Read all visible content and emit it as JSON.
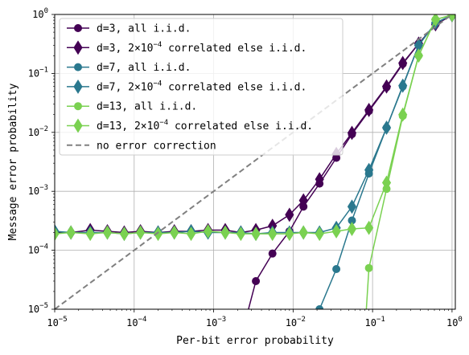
{
  "chart_data": {
    "type": "line",
    "xlabel": "Per-bit error probability",
    "ylabel": "Message error probability",
    "xscale": "log",
    "yscale": "log",
    "xlim": [
      1e-05,
      1.1
    ],
    "ylim": [
      1e-05,
      1
    ],
    "grid": true,
    "legend_position": "top-left",
    "x_ticks": [
      {
        "value": 1e-05,
        "label": "10^-5"
      },
      {
        "value": 0.0001,
        "label": "10^-4"
      },
      {
        "value": 0.001,
        "label": "10^-3"
      },
      {
        "value": 0.01,
        "label": "10^-2"
      },
      {
        "value": 0.1,
        "label": "10^-1"
      },
      {
        "value": 1,
        "label": "10^0"
      }
    ],
    "y_ticks": [
      {
        "value": 1e-05,
        "label": "10^-5"
      },
      {
        "value": 0.0001,
        "label": "10^-4"
      },
      {
        "value": 0.001,
        "label": "10^-3"
      },
      {
        "value": 0.01,
        "label": "10^-2"
      },
      {
        "value": 0.1,
        "label": "10^-1"
      },
      {
        "value": 1,
        "label": "10^0"
      }
    ],
    "series": [
      {
        "name": "d=3, all i.i.d.",
        "color": "#440154",
        "marker": "circle",
        "dashed": false,
        "points": [
          [
            0.00175,
            1e-06
          ],
          [
            0.0034,
            3e-05
          ],
          [
            0.0055,
            8.8e-05
          ],
          [
            0.009,
            0.00021
          ],
          [
            0.0135,
            0.00055
          ],
          [
            0.0215,
            0.00135
          ],
          [
            0.035,
            0.0037
          ],
          [
            0.055,
            0.0093
          ],
          [
            0.09,
            0.023
          ],
          [
            0.15,
            0.058
          ],
          [
            0.24,
            0.145
          ],
          [
            0.38,
            0.32
          ],
          [
            0.62,
            0.68
          ],
          [
            1.0,
            0.97
          ]
        ]
      },
      {
        "name": "d=3, 2×10^-4 correlated else i.i.d.",
        "color": "#440154",
        "marker": "diamond",
        "dashed": false,
        "points": [
          [
            1e-05,
            0.0002
          ],
          [
            1.6e-05,
            0.0002
          ],
          [
            2.8e-05,
            0.00022
          ],
          [
            4.6e-05,
            0.00021
          ],
          [
            7.5e-05,
            0.0002
          ],
          [
            0.00012,
            0.00021
          ],
          [
            0.0002,
            0.0002
          ],
          [
            0.00032,
            0.00021
          ],
          [
            0.00052,
            0.00021
          ],
          [
            0.00085,
            0.00022
          ],
          [
            0.0014,
            0.00022
          ],
          [
            0.0022,
            0.0002
          ],
          [
            0.0034,
            0.00022
          ],
          [
            0.0055,
            0.00026
          ],
          [
            0.009,
            0.0004
          ],
          [
            0.0135,
            0.0007
          ],
          [
            0.0215,
            0.0016
          ],
          [
            0.035,
            0.0043
          ],
          [
            0.055,
            0.0098
          ],
          [
            0.09,
            0.024
          ],
          [
            0.15,
            0.06
          ],
          [
            0.24,
            0.15
          ],
          [
            0.38,
            0.32
          ],
          [
            0.62,
            0.68
          ],
          [
            1.0,
            0.97
          ]
        ]
      },
      {
        "name": "d=7, all i.i.d.",
        "color": "#2a788e",
        "marker": "circle",
        "dashed": false,
        "points": [
          [
            0.0215,
            1e-05
          ],
          [
            0.035,
            4.8e-05
          ],
          [
            0.055,
            0.00032
          ],
          [
            0.09,
            0.002
          ],
          [
            0.15,
            0.012
          ],
          [
            0.24,
            0.06
          ],
          [
            0.38,
            0.3
          ],
          [
            0.62,
            0.72
          ],
          [
            1.0,
            0.97
          ]
        ]
      },
      {
        "name": "d=7, 2×10^-4 correlated else i.i.d.",
        "color": "#2a788e",
        "marker": "diamond",
        "dashed": false,
        "points": [
          [
            1e-05,
            0.00021
          ],
          [
            1.6e-05,
            0.0002
          ],
          [
            2.8e-05,
            0.0002
          ],
          [
            4.6e-05,
            0.0002
          ],
          [
            7.5e-05,
            0.00019
          ],
          [
            0.00012,
            0.0002
          ],
          [
            0.0002,
            0.0002
          ],
          [
            0.00032,
            0.0002
          ],
          [
            0.00052,
            0.00021
          ],
          [
            0.00085,
            0.0002
          ],
          [
            0.0014,
            0.0002
          ],
          [
            0.0022,
            0.0002
          ],
          [
            0.0034,
            0.00019
          ],
          [
            0.0055,
            0.0002
          ],
          [
            0.009,
            0.0002
          ],
          [
            0.0135,
            0.0002
          ],
          [
            0.0215,
            0.0002
          ],
          [
            0.035,
            0.00024
          ],
          [
            0.055,
            0.00055
          ],
          [
            0.09,
            0.0023
          ],
          [
            0.15,
            0.012
          ],
          [
            0.24,
            0.062
          ],
          [
            0.38,
            0.3
          ],
          [
            0.62,
            0.72
          ],
          [
            1.0,
            0.97
          ]
        ]
      },
      {
        "name": "d=13, all i.i.d.",
        "color": "#7ad151",
        "marker": "circle",
        "dashed": false,
        "points": [
          [
            0.075,
            1e-06
          ],
          [
            0.09,
            5e-05
          ],
          [
            0.15,
            0.0011
          ],
          [
            0.24,
            0.019
          ],
          [
            0.38,
            0.2
          ],
          [
            0.62,
            0.82
          ],
          [
            1.0,
            0.98
          ]
        ]
      },
      {
        "name": "d=13, 2×10^-4 correlated else i.i.d.",
        "color": "#7ad151",
        "marker": "diamond",
        "dashed": false,
        "points": [
          [
            1e-05,
            0.00019
          ],
          [
            1.6e-05,
            0.0002
          ],
          [
            2.8e-05,
            0.00019
          ],
          [
            4.6e-05,
            0.0002
          ],
          [
            7.5e-05,
            0.00019
          ],
          [
            0.00012,
            0.0002
          ],
          [
            0.0002,
            0.00019
          ],
          [
            0.00032,
            0.0002
          ],
          [
            0.00052,
            0.00019
          ],
          [
            0.00085,
            0.00021
          ],
          [
            0.0014,
            0.0002
          ],
          [
            0.0022,
            0.00019
          ],
          [
            0.0034,
            0.00019
          ],
          [
            0.0055,
            0.00019
          ],
          [
            0.009,
            0.00019
          ],
          [
            0.0135,
            0.0002
          ],
          [
            0.0215,
            0.00019
          ],
          [
            0.035,
            0.00021
          ],
          [
            0.055,
            0.00023
          ],
          [
            0.09,
            0.00024
          ],
          [
            0.15,
            0.0014
          ],
          [
            0.24,
            0.02
          ],
          [
            0.38,
            0.2
          ],
          [
            0.62,
            0.82
          ],
          [
            1.0,
            0.98
          ]
        ]
      },
      {
        "name": "no error correction",
        "color": "#808080",
        "marker": "none",
        "dashed": true,
        "points": [
          [
            1e-05,
            1e-05
          ],
          [
            1.1,
            1.1
          ]
        ]
      }
    ]
  }
}
